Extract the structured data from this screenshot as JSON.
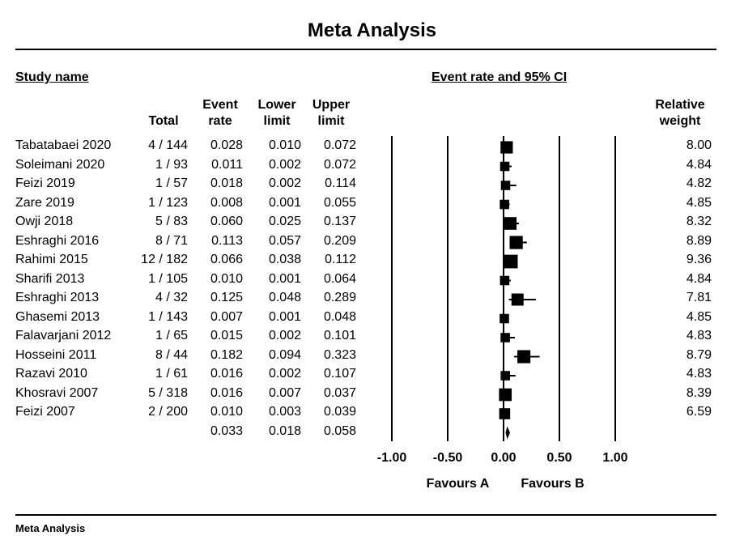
{
  "title": "Meta Analysis",
  "footer": "Meta Analysis",
  "headers": {
    "study_name": "Study name",
    "ci": "Event rate and 95% CI",
    "total": "Total",
    "event_rate": [
      "Event",
      "rate"
    ],
    "lower": [
      "Lower",
      "limit"
    ],
    "upper": [
      "Upper",
      "limit"
    ],
    "weight": [
      "Relative",
      "weight"
    ]
  },
  "chart_data": {
    "type": "forest",
    "xlim": [
      -1.0,
      1.0
    ],
    "ticks": [
      -1.0,
      -0.5,
      0.0,
      0.5,
      1.0
    ],
    "tick_labels": [
      "-1.00",
      "-0.50",
      "0.00",
      "0.50",
      "1.00"
    ],
    "favours_left": "Favours A",
    "favours_right": "Favours B",
    "studies": [
      {
        "name": "Tabatabaei 2020",
        "total": "4 / 144",
        "event_rate": "0.028",
        "lower": "0.010",
        "upper": "0.072",
        "weight": "8.00"
      },
      {
        "name": "Soleimani 2020",
        "total": "1 / 93",
        "event_rate": "0.011",
        "lower": "0.002",
        "upper": "0.072",
        "weight": "4.84"
      },
      {
        "name": "Feizi 2019",
        "total": "1 / 57",
        "event_rate": "0.018",
        "lower": "0.002",
        "upper": "0.114",
        "weight": "4.82"
      },
      {
        "name": "Zare 2019",
        "total": "1 / 123",
        "event_rate": "0.008",
        "lower": "0.001",
        "upper": "0.055",
        "weight": "4.85"
      },
      {
        "name": "Owji 2018",
        "total": "5 / 83",
        "event_rate": "0.060",
        "lower": "0.025",
        "upper": "0.137",
        "weight": "8.32"
      },
      {
        "name": "Eshraghi 2016",
        "total": "8 / 71",
        "event_rate": "0.113",
        "lower": "0.057",
        "upper": "0.209",
        "weight": "8.89"
      },
      {
        "name": "Rahimi 2015",
        "total": "12 / 182",
        "event_rate": "0.066",
        "lower": "0.038",
        "upper": "0.112",
        "weight": "9.36"
      },
      {
        "name": "Sharifi 2013",
        "total": "1 / 105",
        "event_rate": "0.010",
        "lower": "0.001",
        "upper": "0.064",
        "weight": "4.84"
      },
      {
        "name": "Eshraghi 2013",
        "total": "4 / 32",
        "event_rate": "0.125",
        "lower": "0.048",
        "upper": "0.289",
        "weight": "7.81"
      },
      {
        "name": "Ghasemi 2013",
        "total": "1 / 143",
        "event_rate": "0.007",
        "lower": "0.001",
        "upper": "0.048",
        "weight": "4.85"
      },
      {
        "name": "Falavarjani 2012",
        "total": "1 / 65",
        "event_rate": "0.015",
        "lower": "0.002",
        "upper": "0.101",
        "weight": "4.83"
      },
      {
        "name": "Hosseini 2011",
        "total": "8 / 44",
        "event_rate": "0.182",
        "lower": "0.094",
        "upper": "0.323",
        "weight": "8.79"
      },
      {
        "name": "Razavi 2010",
        "total": "1 / 61",
        "event_rate": "0.016",
        "lower": "0.002",
        "upper": "0.107",
        "weight": "4.83"
      },
      {
        "name": "Khosravi 2007",
        "total": "5 / 318",
        "event_rate": "0.016",
        "lower": "0.007",
        "upper": "0.037",
        "weight": "8.39"
      },
      {
        "name": "Feizi 2007",
        "total": "2 / 200",
        "event_rate": "0.010",
        "lower": "0.003",
        "upper": "0.039",
        "weight": "6.59"
      }
    ],
    "summary": {
      "event_rate": "0.033",
      "lower": "0.018",
      "upper": "0.058"
    }
  }
}
